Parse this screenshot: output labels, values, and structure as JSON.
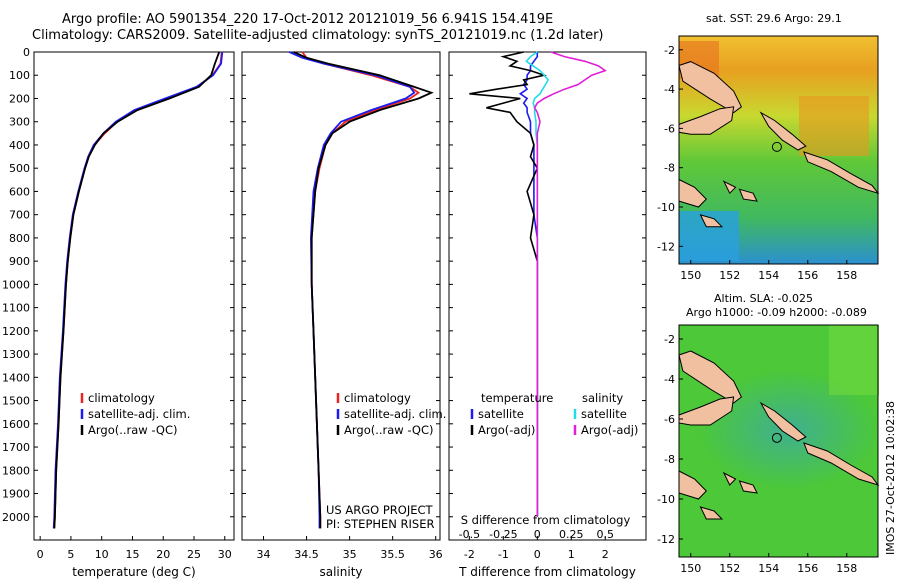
{
  "title_line1": "Argo profile: AO 5901354_220 17-Oct-2012 20121019_56 6.941S 154.419E",
  "title_line2": "Climatology: CARS2009. Satellite-adjusted climatology: synTS_20121019.nc (1.2d later)",
  "map_top_title": "sat. SST: 29.6 Argo: 29.1",
  "map_bottom_title1": "Altim. SLA: -0.025",
  "map_bottom_title2": "Argo h1000: -0.09 h2000: -0.089",
  "side_stamp": "IMOS 27-Oct-2012 10:02:38",
  "colors": {
    "climatology": "#e8261e",
    "satellite": "#1c1cf0",
    "argo": "#000000",
    "sal_satellite": "#22dce8",
    "sal_argo": "#e020d8"
  },
  "chart_data": [
    {
      "type": "line",
      "xlabel": "temperature (deg C)",
      "xticks": [
        0,
        5,
        10,
        15,
        20,
        25,
        30
      ],
      "xlim": [
        -1,
        31.5
      ],
      "ylim": [
        0,
        2100
      ],
      "yticks": [
        0,
        100,
        200,
        300,
        400,
        500,
        600,
        700,
        800,
        900,
        1000,
        1100,
        1200,
        1300,
        1400,
        1500,
        1600,
        1700,
        1800,
        1900,
        2000
      ],
      "legend": [
        "climatology",
        "satellite-adj. clim.",
        "Argo(..raw -QC)"
      ],
      "depth": [
        0,
        50,
        100,
        150,
        200,
        250,
        300,
        350,
        400,
        450,
        500,
        600,
        700,
        800,
        900,
        1000,
        1200,
        1400,
        1600,
        1800,
        2000,
        2050
      ],
      "series": [
        {
          "name": "climatology",
          "values": [
            29.5,
            29.3,
            28.0,
            25.5,
            20.5,
            15.5,
            12.5,
            10.5,
            8.8,
            7.9,
            7.3,
            6.3,
            5.4,
            4.9,
            4.5,
            4.2,
            3.8,
            3.3,
            3.0,
            2.6,
            2.4,
            2.3
          ]
        },
        {
          "name": "satellite-adj. clim.",
          "values": [
            29.6,
            29.4,
            28.1,
            25.4,
            20.3,
            15.3,
            12.3,
            10.3,
            8.7,
            7.8,
            7.2,
            6.2,
            5.3,
            4.8,
            4.4,
            4.1,
            3.7,
            3.2,
            2.9,
            2.5,
            2.3,
            2.2
          ]
        },
        {
          "name": "Argo(..raw -QC)",
          "values": [
            29.1,
            28.4,
            27.8,
            25.8,
            21.0,
            15.8,
            12.6,
            10.3,
            8.9,
            7.9,
            7.3,
            6.3,
            5.4,
            4.9,
            4.5,
            4.2,
            3.8,
            3.3,
            3.0,
            2.6,
            2.4,
            2.3
          ]
        }
      ]
    },
    {
      "type": "line",
      "xlabel": "salinity",
      "xticks": [
        34,
        34.5,
        35,
        35.5,
        36
      ],
      "xlim": [
        33.75,
        36.05
      ],
      "ylim": [
        0,
        2100
      ],
      "legend": [
        "climatology",
        "satellite-adj. clim.",
        "Argo(..raw -QC)"
      ],
      "annotation": [
        "US ARGO PROJECT",
        "PI: STEPHEN RISER"
      ],
      "depth": [
        0,
        25,
        50,
        100,
        150,
        175,
        200,
        250,
        300,
        350,
        400,
        500,
        600,
        800,
        1000,
        1200,
        1400,
        1600,
        1800,
        2000,
        2050
      ],
      "series": [
        {
          "name": "climatology",
          "values": [
            34.45,
            34.5,
            34.7,
            35.25,
            35.7,
            35.8,
            35.7,
            35.3,
            34.95,
            34.8,
            34.72,
            34.65,
            34.6,
            34.56,
            34.56,
            34.58,
            34.6,
            34.62,
            34.64,
            34.66,
            34.66
          ]
        },
        {
          "name": "satellite-adj. clim.",
          "values": [
            34.3,
            34.45,
            34.7,
            35.3,
            35.7,
            35.75,
            35.65,
            35.25,
            34.9,
            34.78,
            34.7,
            34.63,
            34.58,
            34.55,
            34.56,
            34.58,
            34.6,
            34.62,
            34.64,
            34.65,
            34.65
          ]
        },
        {
          "name": "Argo(..raw -QC)",
          "values": [
            34.35,
            34.5,
            34.75,
            35.35,
            35.75,
            35.95,
            35.8,
            35.35,
            35.0,
            34.8,
            34.72,
            34.64,
            34.6,
            34.56,
            34.56,
            34.58,
            34.6,
            34.62,
            34.64,
            34.66,
            34.66
          ]
        }
      ]
    },
    {
      "type": "line",
      "xlabel_bottom": "T difference from climatology",
      "xlabel_top": "S difference from climatology",
      "xticks_T": [
        -2,
        -1,
        0,
        1,
        2
      ],
      "xticks_S": [
        -0.5,
        -0.25,
        0,
        0.25,
        0.5
      ],
      "xlim_T": [
        -2.6,
        3.2
      ],
      "ylim": [
        0,
        2100
      ],
      "legend_T": [
        "temperature",
        "satellite",
        "Argo(-adj)"
      ],
      "legend_S": [
        "salinity",
        "satellite",
        "Argo(-adj)"
      ],
      "depth": [
        0,
        20,
        40,
        60,
        80,
        100,
        120,
        140,
        160,
        180,
        200,
        220,
        240,
        260,
        300,
        350,
        400,
        450,
        500,
        600,
        700,
        800,
        900,
        1000,
        1200,
        1400,
        1600,
        1800,
        2000
      ],
      "series": [
        {
          "name": "temperature satellite",
          "values": [
            0.0,
            0.0,
            -0.1,
            -0.2,
            -0.2,
            -0.3,
            -0.3,
            -0.4,
            -0.3,
            -0.5,
            -0.3,
            -0.4,
            -0.3,
            -0.3,
            -0.2,
            -0.2,
            -0.1,
            -0.1,
            -0.1,
            -0.1,
            -0.1,
            0.0,
            0.0,
            0.0,
            0.0,
            0.0,
            0.0,
            0.0,
            0.0
          ]
        },
        {
          "name": "temperature Argo(-adj)",
          "values": [
            -0.4,
            -1.0,
            -0.6,
            -0.8,
            -0.2,
            0.2,
            -0.4,
            -0.3,
            -1.2,
            -2.0,
            -0.5,
            -1.0,
            -1.5,
            -0.8,
            -0.6,
            -0.2,
            -0.1,
            -0.2,
            0.0,
            -0.3,
            -0.1,
            -0.2,
            0.0,
            0.0,
            0.0,
            0.0,
            0.0,
            0.0,
            0.0
          ]
        },
        {
          "name": "salinity satellite",
          "values": [
            0.0,
            -0.05,
            -0.08,
            -0.03,
            0.02,
            0.05,
            0.08,
            0.06,
            0.04,
            0.02,
            -0.02,
            -0.03,
            -0.02,
            -0.02,
            -0.01,
            -0.01,
            0.0,
            0.0,
            0.0,
            0.0,
            0.0,
            0.0,
            0.0,
            0.0,
            0.0,
            0.0,
            0.0,
            0.0,
            0.0
          ]
        },
        {
          "name": "salinity Argo(-adj)",
          "values": [
            0.1,
            0.2,
            0.35,
            0.45,
            0.5,
            0.4,
            0.35,
            0.3,
            0.2,
            0.12,
            0.05,
            0.0,
            -0.02,
            0.0,
            0.02,
            0.0,
            0.0,
            0.0,
            0.0,
            0.0,
            0.0,
            0.0,
            0.0,
            0.0,
            0.0,
            0.0,
            0.0,
            0.0,
            0.0
          ]
        }
      ]
    },
    {
      "type": "heatmap",
      "title": "sat. SST: 29.6 Argo: 29.1",
      "xticks": [
        150,
        152,
        154,
        156,
        158
      ],
      "yticks": [
        -2,
        -4,
        -6,
        -8,
        -10,
        -12
      ],
      "xlim": [
        149.4,
        159.6
      ],
      "ylim": [
        -12.9,
        -1.3
      ],
      "profile_location": [
        154.419,
        -6.941
      ]
    },
    {
      "type": "heatmap",
      "title": "Altim. SLA: -0.025",
      "xticks": [
        150,
        152,
        154,
        156,
        158
      ],
      "yticks": [
        -2,
        -4,
        -6,
        -8,
        -10,
        -12
      ],
      "xlim": [
        149.4,
        159.6
      ],
      "ylim": [
        -12.9,
        -1.3
      ],
      "profile_location": [
        154.419,
        -6.941
      ]
    }
  ]
}
